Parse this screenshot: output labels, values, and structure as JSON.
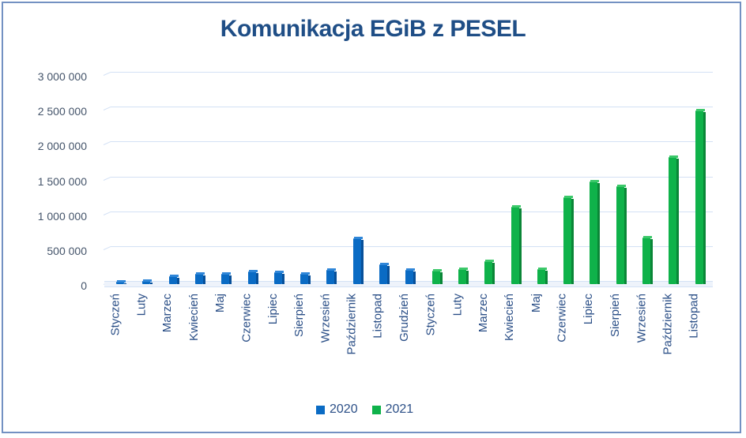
{
  "chart_data": {
    "type": "bar",
    "title": "Komunikacja EGiB z PESEL",
    "xlabel": "",
    "ylabel": "",
    "ylim": [
      0,
      3000000
    ],
    "yticks": [
      "0",
      "500 000",
      "1 000 000",
      "1 500 000",
      "2 000 000",
      "2 500 000",
      "3 000 000"
    ],
    "grid": true,
    "legend_position": "bottom",
    "style": "3D clustered column",
    "categories": [
      "Styczeń",
      "Luty",
      "Marzec",
      "Kwiecień",
      "Maj",
      "Czerwiec",
      "Lipiec",
      "Sierpień",
      "Wrzesień",
      "Październik",
      "Listopad",
      "Grudzień",
      "Styczeń",
      "Luty",
      "Marzec",
      "Kwiecień",
      "Maj",
      "Czerwiec",
      "Lipiec",
      "Sierpień",
      "Wrzesień",
      "Październik",
      "Listopad"
    ],
    "series": [
      {
        "name": "2020",
        "color": "#0a6bc4",
        "categories": [
          "Styczeń",
          "Luty",
          "Marzec",
          "Kwiecień",
          "Maj",
          "Czerwiec",
          "Lipiec",
          "Sierpień",
          "Wrzesień",
          "Październik",
          "Listopad",
          "Grudzień"
        ],
        "values": [
          20000,
          50000,
          110000,
          150000,
          150000,
          180000,
          170000,
          150000,
          200000,
          660000,
          280000,
          200000
        ]
      },
      {
        "name": "2021",
        "color": "#0fb24a",
        "categories": [
          "Styczeń",
          "Luty",
          "Marzec",
          "Kwiecień",
          "Maj",
          "Czerwiec",
          "Lipiec",
          "Sierpień",
          "Wrzesień",
          "Październik",
          "Listopad"
        ],
        "values": [
          190000,
          210000,
          330000,
          1110000,
          220000,
          1240000,
          1470000,
          1400000,
          670000,
          1820000,
          2490000
        ]
      }
    ]
  },
  "legend": {
    "items": [
      {
        "label": "2020",
        "color": "#0a6bc4"
      },
      {
        "label": "2021",
        "color": "#0fb24a"
      }
    ]
  }
}
